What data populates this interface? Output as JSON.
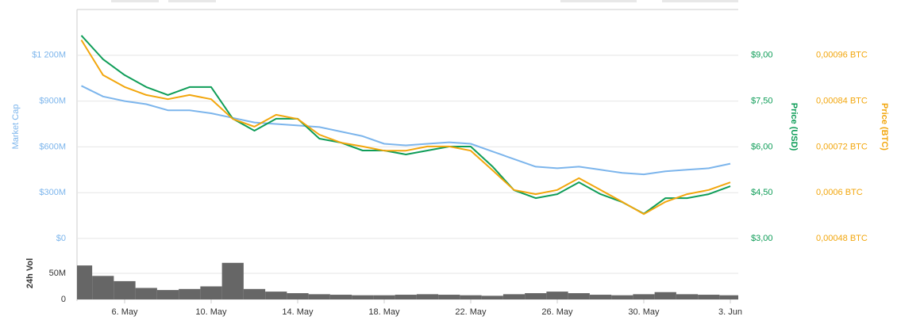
{
  "chart_data": {
    "type": "line",
    "categories": [
      null,
      null,
      "6. May",
      null,
      null,
      null,
      "10. May",
      null,
      null,
      null,
      "14. May",
      null,
      null,
      null,
      "18. May",
      null,
      null,
      null,
      "22. May",
      null,
      null,
      null,
      "26. May",
      null,
      null,
      null,
      "30. May",
      null,
      null,
      null,
      "3. Jun"
    ],
    "ylabel": "Market Cap",
    "y2label": "Price (USD)",
    "y3label": "Price (BTC)",
    "ylim": [
      0,
      1500
    ],
    "yticks": [
      {
        "value": 0,
        "label": "$0"
      },
      {
        "value": 300,
        "label": "$300M"
      },
      {
        "value": 600,
        "label": "$600M"
      },
      {
        "value": 900,
        "label": "$900M"
      },
      {
        "value": 1200,
        "label": "$1 200M"
      }
    ],
    "y2lim": [
      3,
      10.5
    ],
    "y2ticks": [
      {
        "value": 3,
        "label": "$3,00"
      },
      {
        "value": 4.5,
        "label": "$4,50"
      },
      {
        "value": 6,
        "label": "$6,00"
      },
      {
        "value": 7.5,
        "label": "$7,50"
      },
      {
        "value": 9,
        "label": "$9,00"
      }
    ],
    "y3lim": [
      0.00048,
      0.00108
    ],
    "y3ticks": [
      {
        "value": 0.00048,
        "label": "0,00048 BTC"
      },
      {
        "value": 0.0006,
        "label": "0,0006 BTC"
      },
      {
        "value": 0.00072,
        "label": "0,00072 BTC"
      },
      {
        "value": 0.00084,
        "label": "0,00084 BTC"
      },
      {
        "value": 0.00096,
        "label": "0,00096 BTC"
      }
    ],
    "grid": true,
    "series": [
      {
        "axis": "y",
        "color": "#7cb5ec",
        "values": [
          1000,
          930,
          900,
          880,
          840,
          840,
          820,
          790,
          760,
          750,
          740,
          730,
          700,
          670,
          620,
          610,
          620,
          630,
          620,
          570,
          520,
          470,
          460,
          470,
          450,
          430,
          420,
          440,
          450,
          460,
          490
        ]
      },
      {
        "axis": "y2",
        "color": "#0f9d58",
        "values": [
          9.65,
          8.87,
          8.35,
          7.96,
          7.7,
          7.96,
          7.96,
          6.92,
          6.53,
          6.92,
          6.92,
          6.27,
          6.14,
          5.88,
          5.88,
          5.75,
          5.88,
          6.01,
          6.01,
          5.36,
          4.58,
          4.32,
          4.45,
          4.84,
          4.45,
          4.19,
          3.81,
          4.32,
          4.32,
          4.45,
          4.71
        ]
      },
      {
        "axis": "y3",
        "color": "#f2a60c",
        "values": [
          0.001,
          0.000908,
          0.000877,
          0.000856,
          0.000845,
          0.000856,
          0.000845,
          0.000793,
          0.000773,
          0.000804,
          0.000793,
          0.000752,
          0.000731,
          0.000721,
          0.00071,
          0.00071,
          0.000721,
          0.000721,
          0.00071,
          0.000659,
          0.000607,
          0.000596,
          0.000607,
          0.000638,
          0.000607,
          0.000576,
          0.000544,
          0.000576,
          0.000596,
          0.000607,
          0.000627
        ]
      }
    ],
    "volume": {
      "type": "bar",
      "ylabel": "24h Vol",
      "color": "#666666",
      "ylim": [
        0,
        100
      ],
      "yticks": [
        0,
        {
          "value": 50,
          "label": "50M"
        }
      ],
      "values": [
        65,
        45,
        35,
        22,
        18,
        20,
        25,
        70,
        20,
        15,
        12,
        10,
        9,
        8,
        8,
        9,
        10,
        9,
        8,
        7,
        10,
        12,
        15,
        12,
        9,
        8,
        10,
        14,
        10,
        9,
        8
      ]
    }
  }
}
